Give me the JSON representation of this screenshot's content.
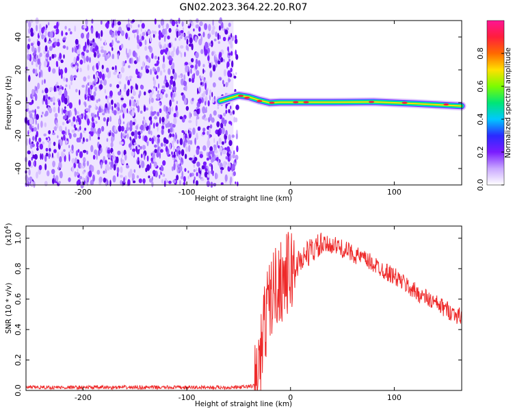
{
  "title": "GN02.2023.364.22.20.R07",
  "chart_data": [
    {
      "type": "heatmap",
      "xlabel": "Height of straight line (km)",
      "ylabel": "Frequency (Hz)",
      "xlim": [
        -255,
        165
      ],
      "ylim": [
        -50,
        50
      ],
      "xticks": [
        -200,
        -100,
        0,
        100
      ],
      "yticks": [
        -40,
        -20,
        0,
        20,
        40
      ],
      "colorbar": {
        "label": "Normalized spectral amplitude",
        "range": [
          0,
          1
        ],
        "ticks": [
          "0.0",
          "0.2",
          "0.4",
          "0.6",
          "0.8"
        ],
        "colors": [
          "#ffffff",
          "#c9a8ff",
          "#7a1cff",
          "#2a2aff",
          "#00c8ff",
          "#00e676",
          "#7cfc00",
          "#ffe000",
          "#ff6a00",
          "#ff1e3c",
          "#ff1493"
        ]
      },
      "noise_region_x": [
        -255,
        -55
      ],
      "signal_track": [
        {
          "x": -68,
          "y": 1
        },
        {
          "x": -50,
          "y": 4.5
        },
        {
          "x": -40,
          "y": 3.5
        },
        {
          "x": -30,
          "y": 1.5
        },
        {
          "x": -20,
          "y": 0
        },
        {
          "x": -10,
          "y": 0.3
        },
        {
          "x": 0,
          "y": 0.3
        },
        {
          "x": 40,
          "y": 0.3
        },
        {
          "x": 80,
          "y": 0.5
        },
        {
          "x": 120,
          "y": -0.5
        },
        {
          "x": 165,
          "y": -2
        }
      ]
    },
    {
      "type": "line",
      "xlabel": "Height of straight line (km)",
      "ylabel": "SNR (10 * v/v)",
      "yexponent_label": "(x10",
      "yexponent_power": "4",
      "yexponent_close": ")",
      "xlim": [
        -255,
        165
      ],
      "ylim": [
        0,
        1.08
      ],
      "xticks": [
        -200,
        -100,
        0,
        100
      ],
      "yticks": [
        0.0,
        0.2,
        0.4,
        0.6,
        0.8,
        1.0
      ],
      "ytick_labels": [
        "0.0",
        "0.2",
        "0.4",
        "0.6",
        "0.8",
        "1.0"
      ],
      "series": [
        {
          "color": "#ee2a2a",
          "x": [
            -255,
            -200,
            -150,
            -100,
            -50,
            -35,
            -30,
            -25,
            -20,
            -15,
            -10,
            0,
            10,
            20,
            30,
            40,
            50,
            60,
            80,
            100,
            120,
            140,
            165
          ],
          "y": [
            0.02,
            0.02,
            0.02,
            0.02,
            0.02,
            0.03,
            0.15,
            0.45,
            0.6,
            0.68,
            0.72,
            0.78,
            0.86,
            0.92,
            0.95,
            0.96,
            0.93,
            0.9,
            0.83,
            0.75,
            0.65,
            0.57,
            0.48
          ]
        }
      ]
    }
  ]
}
